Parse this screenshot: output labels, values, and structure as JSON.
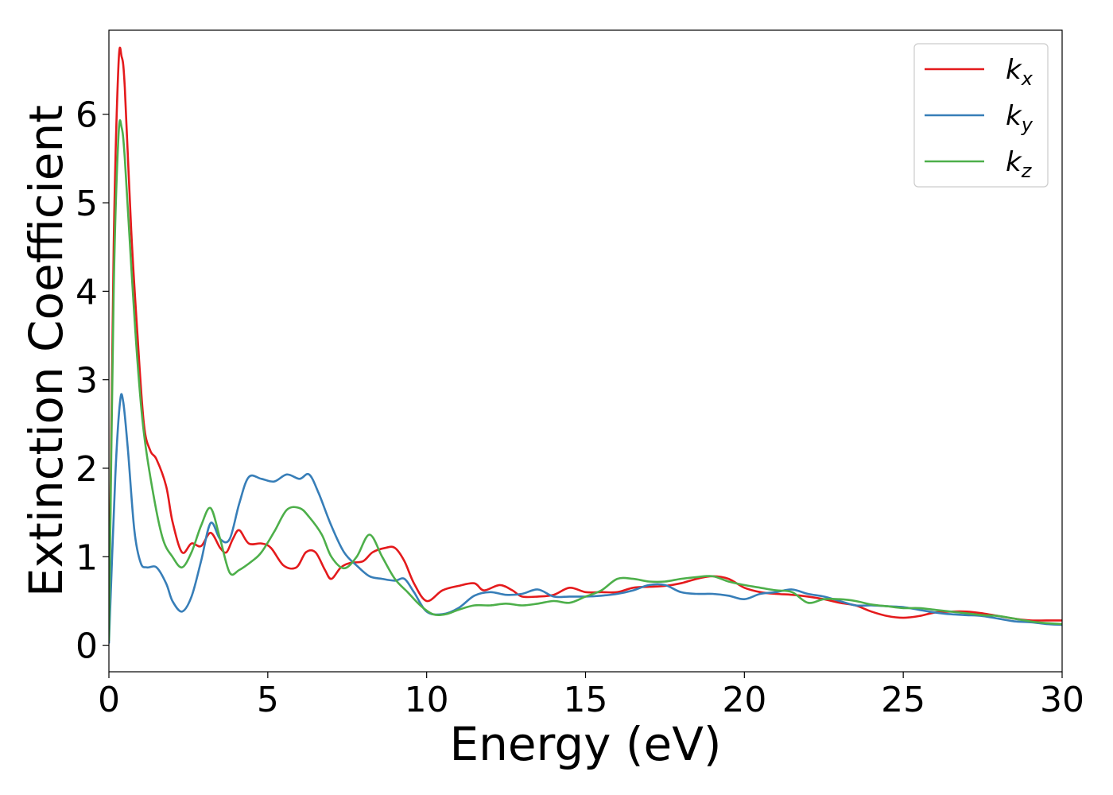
{
  "chart_data": {
    "type": "line",
    "xlabel": "Energy (eV)",
    "ylabel": "Extinction Coefficient",
    "xlim": [
      0,
      30
    ],
    "ylim": [
      -0.3,
      6.95
    ],
    "xticks": [
      0,
      5,
      10,
      15,
      20,
      25,
      30
    ],
    "yticks": [
      0,
      1,
      2,
      3,
      4,
      5,
      6
    ],
    "grid": false,
    "legend_position": "top-right",
    "series": [
      {
        "name": "k",
        "subscript": "x",
        "color": "#e41a1c",
        "x": [
          0,
          0.15,
          0.3,
          0.4,
          0.5,
          0.7,
          0.9,
          1.1,
          1.3,
          1.5,
          1.8,
          2.0,
          2.3,
          2.6,
          2.9,
          3.2,
          3.5,
          3.7,
          3.9,
          4.1,
          4.4,
          4.8,
          5.1,
          5.5,
          5.9,
          6.2,
          6.5,
          6.8,
          7.0,
          7.3,
          7.6,
          8.0,
          8.3,
          8.7,
          9.0,
          9.3,
          9.6,
          10.0,
          10.5,
          11.0,
          11.5,
          11.8,
          12.3,
          12.7,
          13.0,
          13.5,
          14.0,
          14.5,
          15.0,
          15.5,
          16.0,
          16.5,
          17.0,
          17.5,
          18.0,
          18.5,
          19.0,
          19.5,
          20.0,
          20.5,
          21.0,
          21.5,
          22.0,
          22.5,
          23.0,
          23.5,
          24.0,
          24.5,
          25.0,
          25.5,
          26.0,
          26.5,
          27.0,
          27.5,
          28.0,
          28.5,
          29.0,
          29.5,
          30.0
        ],
        "values": [
          0.05,
          4.5,
          6.55,
          6.65,
          6.3,
          4.7,
          3.5,
          2.5,
          2.2,
          2.1,
          1.8,
          1.4,
          1.05,
          1.15,
          1.12,
          1.27,
          1.1,
          1.05,
          1.2,
          1.3,
          1.15,
          1.15,
          1.1,
          0.9,
          0.88,
          1.05,
          1.05,
          0.85,
          0.75,
          0.88,
          0.93,
          0.95,
          1.05,
          1.1,
          1.1,
          0.95,
          0.7,
          0.5,
          0.62,
          0.67,
          0.7,
          0.62,
          0.68,
          0.62,
          0.55,
          0.55,
          0.57,
          0.65,
          0.6,
          0.6,
          0.6,
          0.65,
          0.66,
          0.67,
          0.7,
          0.75,
          0.78,
          0.75,
          0.65,
          0.6,
          0.58,
          0.57,
          0.55,
          0.52,
          0.48,
          0.45,
          0.38,
          0.33,
          0.31,
          0.33,
          0.37,
          0.38,
          0.38,
          0.36,
          0.33,
          0.3,
          0.28,
          0.28,
          0.28
        ]
      },
      {
        "name": "k",
        "subscript": "y",
        "color": "#377eb8",
        "x": [
          0,
          0.2,
          0.35,
          0.45,
          0.6,
          0.8,
          1.0,
          1.2,
          1.5,
          1.8,
          2.0,
          2.3,
          2.6,
          2.9,
          3.2,
          3.5,
          3.8,
          4.1,
          4.4,
          4.8,
          5.2,
          5.6,
          6.0,
          6.3,
          6.6,
          7.0,
          7.4,
          7.8,
          8.2,
          8.6,
          9.0,
          9.3,
          9.6,
          10.0,
          10.5,
          11.0,
          11.5,
          12.0,
          12.5,
          13.0,
          13.5,
          14.0,
          14.5,
          15.0,
          15.5,
          16.0,
          16.5,
          17.0,
          17.5,
          18.0,
          18.5,
          19.0,
          19.5,
          20.0,
          20.5,
          21.0,
          21.5,
          22.0,
          22.5,
          23.0,
          23.5,
          24.0,
          24.5,
          25.0,
          25.5,
          26.0,
          26.5,
          27.0,
          27.5,
          28.0,
          28.5,
          29.0,
          29.5,
          30.0
        ],
        "values": [
          0.02,
          1.9,
          2.75,
          2.75,
          2.2,
          1.3,
          0.93,
          0.88,
          0.88,
          0.7,
          0.5,
          0.38,
          0.55,
          0.95,
          1.38,
          1.2,
          1.2,
          1.6,
          1.9,
          1.88,
          1.85,
          1.93,
          1.88,
          1.93,
          1.72,
          1.35,
          1.05,
          0.9,
          0.78,
          0.75,
          0.73,
          0.75,
          0.6,
          0.38,
          0.35,
          0.42,
          0.56,
          0.6,
          0.57,
          0.58,
          0.63,
          0.55,
          0.55,
          0.55,
          0.56,
          0.58,
          0.62,
          0.68,
          0.68,
          0.6,
          0.58,
          0.58,
          0.56,
          0.52,
          0.58,
          0.6,
          0.63,
          0.58,
          0.55,
          0.5,
          0.45,
          0.45,
          0.44,
          0.43,
          0.4,
          0.37,
          0.35,
          0.34,
          0.33,
          0.3,
          0.27,
          0.26,
          0.24,
          0.23
        ]
      },
      {
        "name": "k",
        "subscript": "z",
        "color": "#4daf4a",
        "x": [
          0,
          0.15,
          0.3,
          0.4,
          0.5,
          0.7,
          0.9,
          1.1,
          1.4,
          1.7,
          2.0,
          2.3,
          2.6,
          2.9,
          3.2,
          3.5,
          3.8,
          4.1,
          4.5,
          4.8,
          5.2,
          5.6,
          6.0,
          6.3,
          6.7,
          7.0,
          7.4,
          7.8,
          8.2,
          8.6,
          9.0,
          9.4,
          9.8,
          10.2,
          10.6,
          11.0,
          11.5,
          12.0,
          12.5,
          13.0,
          13.5,
          14.0,
          14.5,
          15.0,
          15.5,
          16.0,
          16.5,
          17.0,
          17.5,
          18.0,
          18.5,
          19.0,
          19.5,
          20.0,
          20.5,
          21.0,
          21.5,
          22.0,
          22.5,
          23.0,
          23.5,
          24.0,
          24.5,
          25.0,
          25.5,
          26.0,
          26.5,
          27.0,
          27.5,
          28.0,
          28.5,
          29.0,
          29.5,
          30.0
        ],
        "values": [
          0.05,
          4.0,
          5.75,
          5.85,
          5.5,
          4.3,
          3.2,
          2.4,
          1.7,
          1.2,
          1.0,
          0.88,
          1.05,
          1.35,
          1.55,
          1.2,
          0.82,
          0.85,
          0.95,
          1.05,
          1.28,
          1.53,
          1.55,
          1.45,
          1.25,
          1.0,
          0.87,
          1.0,
          1.25,
          1.0,
          0.75,
          0.6,
          0.45,
          0.35,
          0.35,
          0.4,
          0.45,
          0.45,
          0.47,
          0.45,
          0.47,
          0.5,
          0.48,
          0.55,
          0.62,
          0.75,
          0.75,
          0.72,
          0.72,
          0.75,
          0.77,
          0.78,
          0.72,
          0.68,
          0.65,
          0.62,
          0.6,
          0.48,
          0.52,
          0.52,
          0.5,
          0.46,
          0.44,
          0.42,
          0.42,
          0.4,
          0.38,
          0.36,
          0.34,
          0.33,
          0.3,
          0.27,
          0.25,
          0.24
        ]
      }
    ]
  }
}
